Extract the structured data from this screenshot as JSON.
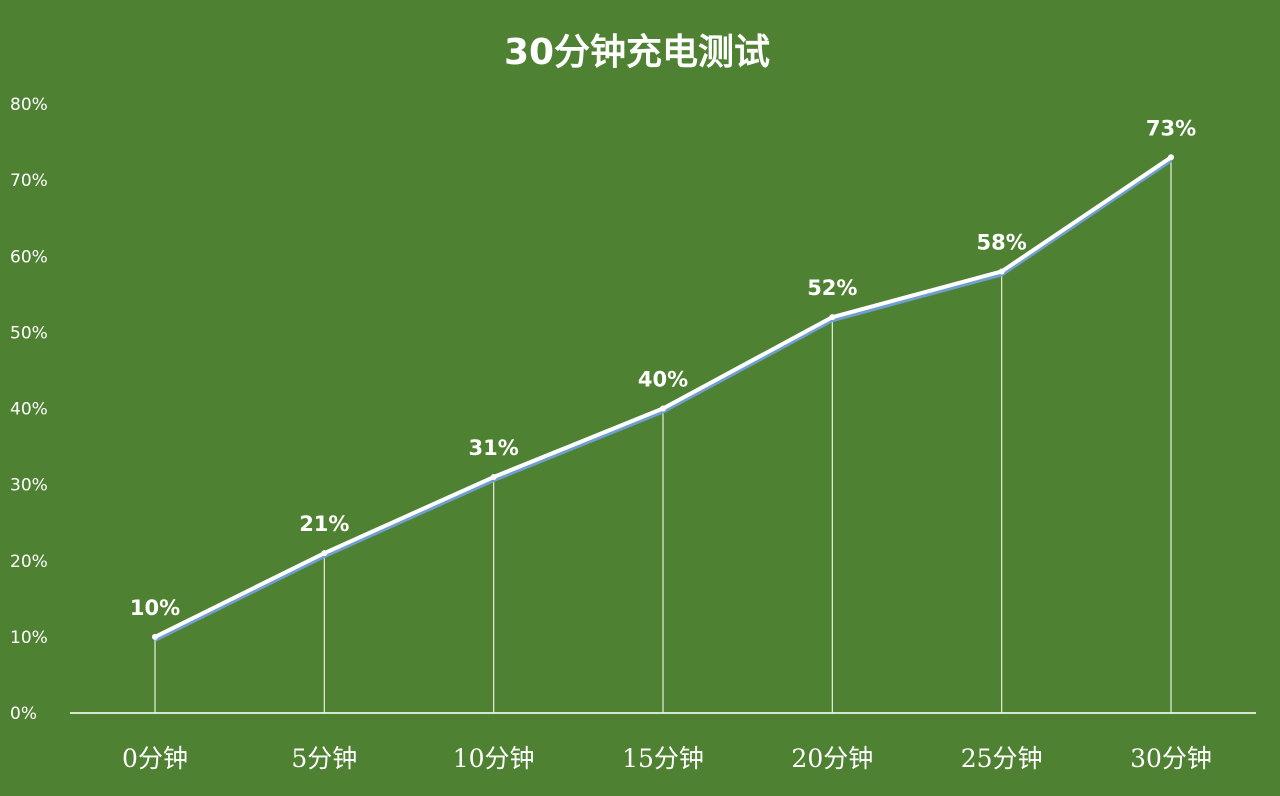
{
  "chart_data": {
    "type": "line",
    "title": "30分钟充电测试",
    "categories": [
      "0分钟",
      "5分钟",
      "10分钟",
      "15分钟",
      "20分钟",
      "25分钟",
      "30分钟"
    ],
    "series": [
      {
        "values": [
          10,
          21,
          31,
          40,
          52,
          58,
          73
        ]
      }
    ],
    "data_labels": [
      "10%",
      "21%",
      "31%",
      "40%",
      "52%",
      "58%",
      "73%"
    ],
    "y_ticks": [
      "0%",
      "10%",
      "20%",
      "30%",
      "40%",
      "50%",
      "60%",
      "70%",
      "80%"
    ],
    "ylim": [
      0,
      80
    ],
    "grid": false,
    "drop_lines": true,
    "legend": "none",
    "xlabel": "",
    "ylabel": ""
  },
  "colors": {
    "background": "#4f8132",
    "line": "#ffffff",
    "line_shadow": "#6f9fd0",
    "axis": "#d8e6cf",
    "drop_line": "#e6efe0",
    "text": "#ffffff"
  }
}
